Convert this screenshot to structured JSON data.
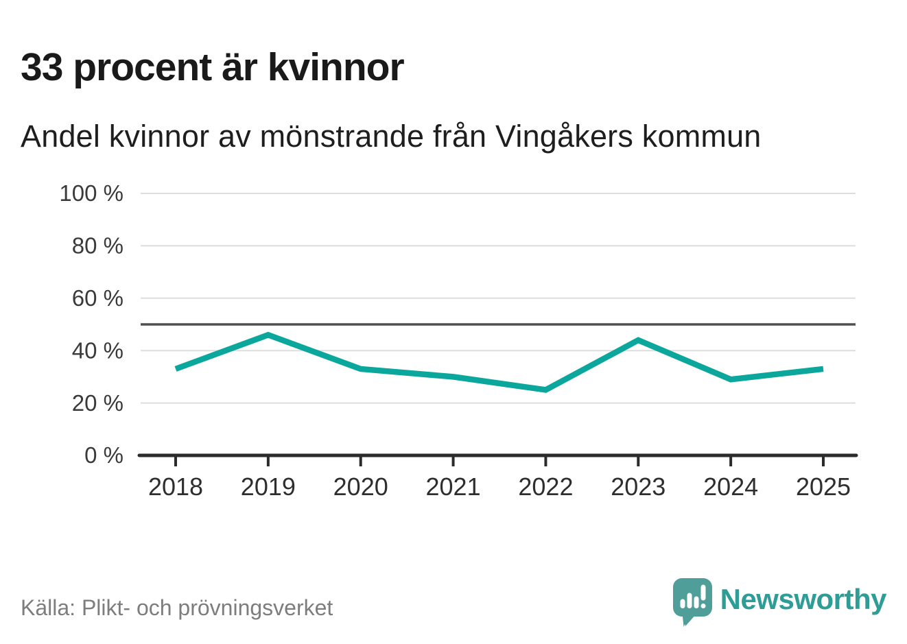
{
  "header": {
    "title": "33 procent är kvinnor",
    "subtitle": "Andel kvinnor av mönstrande från Vingåkers kommun"
  },
  "chart_data": {
    "type": "line",
    "title": "33 procent är kvinnor",
    "subtitle": "Andel kvinnor av mönstrande från Vingåkers kommun",
    "x": [
      "2018",
      "2019",
      "2020",
      "2021",
      "2022",
      "2023",
      "2024",
      "2025"
    ],
    "series": [
      {
        "name": "Andel kvinnor av mönstrande",
        "values": [
          33,
          46,
          33,
          30,
          25,
          44,
          29,
          33
        ],
        "color": "#0ca79c"
      }
    ],
    "ylim": [
      0,
      100
    ],
    "yticks": [
      0,
      20,
      40,
      60,
      80,
      100
    ],
    "ytick_labels": [
      "0 %",
      "20 %",
      "40 %",
      "60 %",
      "80 %",
      "100 %"
    ],
    "unit": "%",
    "grid": true,
    "reference_line": {
      "value": 50
    },
    "legend": "none"
  },
  "footer": {
    "source": "Källa: Plikt- och prövningsverket",
    "brand": "Newsworthy",
    "logo_icon": "bar-chart-speech-bubble-icon"
  },
  "colors": {
    "line": "#0ca79c",
    "grid": "#dddddd",
    "axis": "#2b2b2b",
    "reference": "#4f4f4f",
    "tick_text": "#3a3a3a",
    "x_tick_text": "#2e2e2e",
    "source_text": "#7d7d7d",
    "logo_teal": "#4f9e99",
    "wordmark_teal": "#2f9c96",
    "background": "#ffffff"
  }
}
